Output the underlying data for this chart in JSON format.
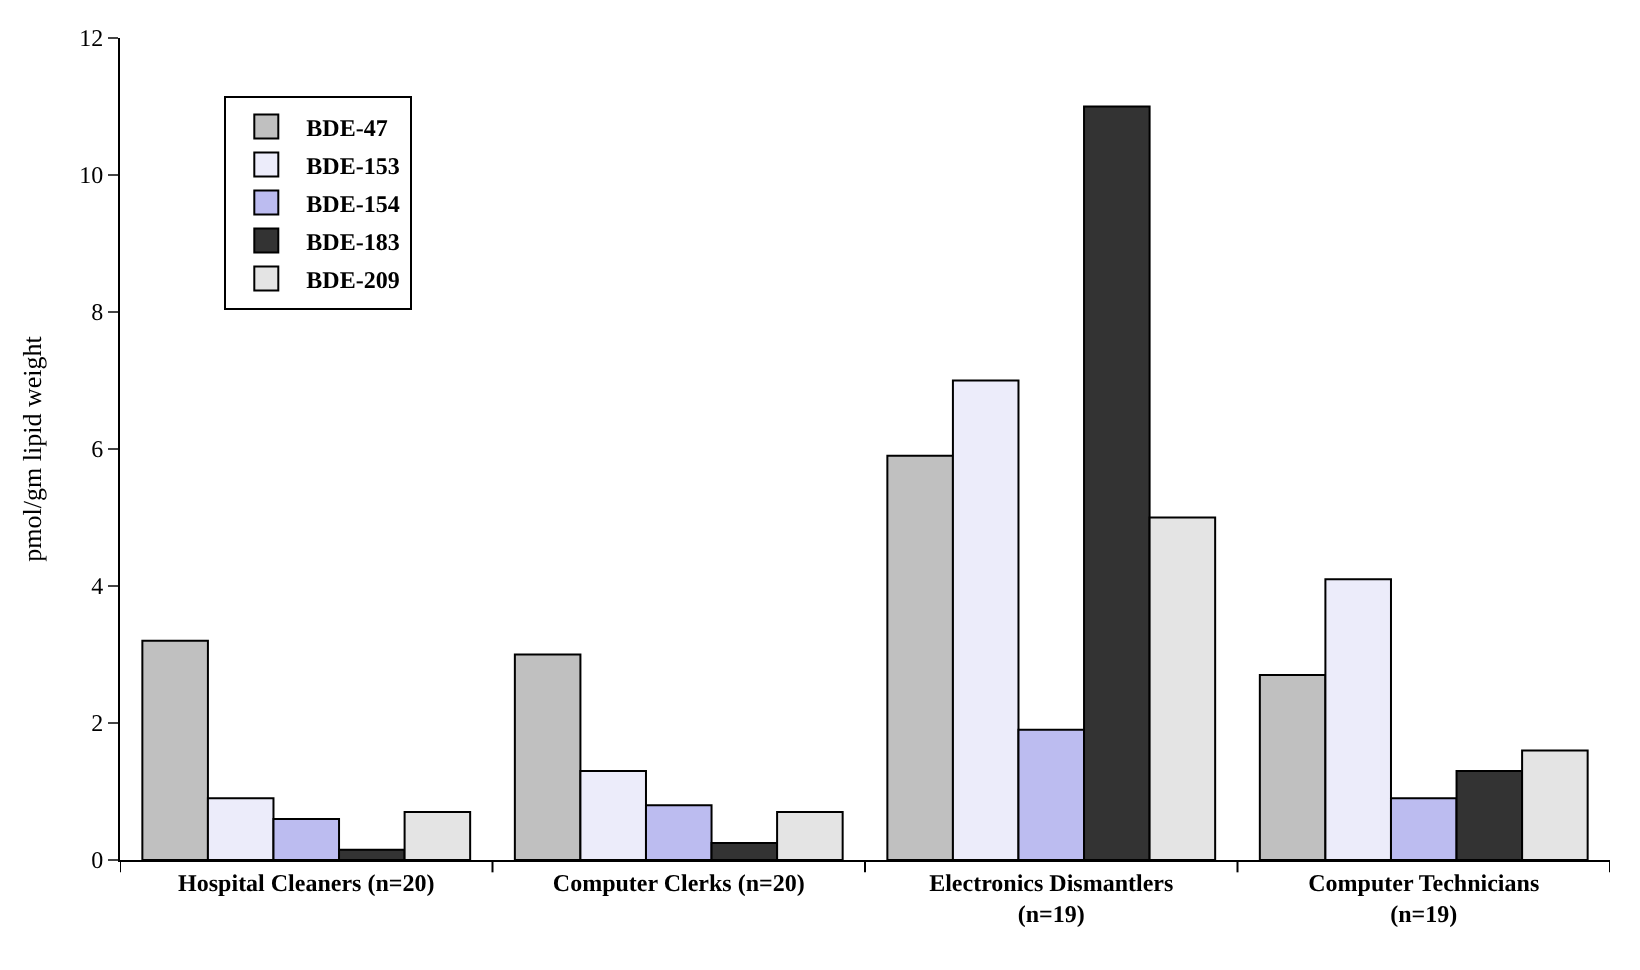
{
  "chart_data": {
    "type": "bar",
    "ylabel": "pmol/gm lipid weight",
    "categories": [
      "Hospital Cleaners (n=20)",
      "Computer Clerks (n=20)",
      "Electronics Dismantlers (n=19)",
      "Computer Technicians (n=19)"
    ],
    "series": [
      {
        "name": "BDE-47",
        "color": "#c0c0c0",
        "values": [
          3.2,
          3.0,
          5.9,
          2.7
        ]
      },
      {
        "name": "BDE-153",
        "color": "#ececfa",
        "values": [
          0.9,
          1.3,
          7.0,
          4.1
        ]
      },
      {
        "name": "BDE-154",
        "color": "#bcbcf0",
        "values": [
          0.6,
          0.8,
          1.9,
          0.9
        ]
      },
      {
        "name": "BDE-183",
        "color": "#333333",
        "values": [
          0.15,
          0.25,
          11.0,
          1.3
        ]
      },
      {
        "name": "BDE-209",
        "color": "#e4e4e4",
        "values": [
          0.7,
          0.7,
          5.0,
          1.6
        ]
      }
    ],
    "ylim": [
      0,
      12
    ],
    "yticks": [
      0,
      2,
      4,
      6,
      8,
      10,
      12
    ],
    "legend": "top left"
  }
}
